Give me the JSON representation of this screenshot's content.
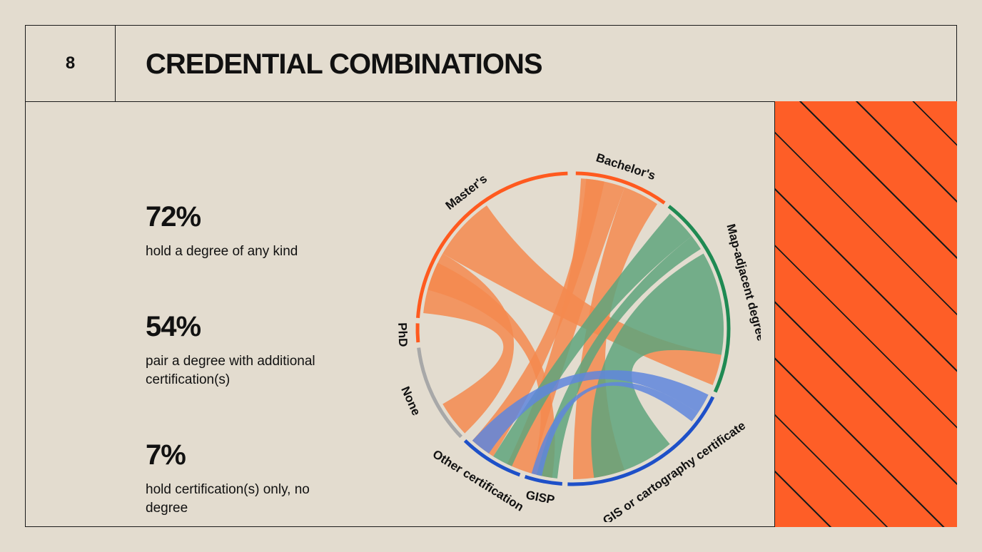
{
  "header": {
    "page_number": "8",
    "title": "CREDENTIAL COMBINATIONS"
  },
  "stats": [
    {
      "value": "72%",
      "description": "hold a degree of any kind"
    },
    {
      "value": "54%",
      "description": "pair a degree with additional certification(s)"
    },
    {
      "value": "7%",
      "description": "hold certification(s) only,  no degree"
    }
  ],
  "diagram": {
    "segments": [
      {
        "label": "Bachelor's",
        "color": "#ff5a1f"
      },
      {
        "label": "Map-adjacent degree",
        "color": "#1f8a53"
      },
      {
        "label": "GIS or cartography certificate",
        "color": "#1e50c8"
      },
      {
        "label": "GISP",
        "color": "#1e50c8"
      },
      {
        "label": "Other certification",
        "color": "#1e50c8"
      },
      {
        "label": "None",
        "color": "#a8a8a8"
      },
      {
        "label": "PhD",
        "color": "#ff5a1f"
      },
      {
        "label": "Master's",
        "color": "#ff5a1f"
      }
    ],
    "ribbon_colors": {
      "degree": "#f5894f",
      "map_adjacent": "#5fa57c",
      "certificate": "#5f86dd"
    }
  },
  "colors": {
    "background": "#e3dccf",
    "accent_panel": "#fe5e27",
    "line": "#1a1a1a"
  }
}
